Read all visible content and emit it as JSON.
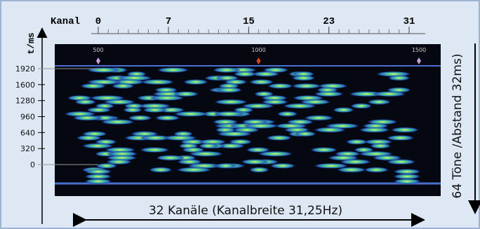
{
  "ruler": {
    "label": "Kanal",
    "ticks": [
      0,
      7,
      15,
      23,
      31
    ]
  },
  "y_axis": {
    "label": "t/ms",
    "ticks": [
      1920,
      1600,
      1280,
      960,
      640,
      320,
      0
    ]
  },
  "image_scale": [
    500,
    1000,
    1500
  ],
  "caption_bottom": "32 Kanäle (Kanalbreite 31,25Hz)",
  "caption_right": "64 Töne /Abstand 32ms)"
}
